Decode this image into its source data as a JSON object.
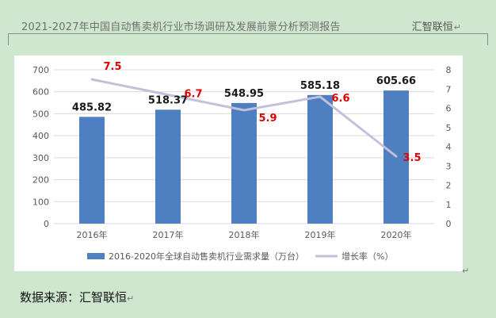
{
  "header": {
    "title": "2021-2027年中国自动售卖机行业市场调研及发展前景分析预测报告",
    "brand": "汇智联恒",
    "mark": "↵"
  },
  "source": {
    "text": "数据来源：汇智联恒",
    "mark": "↵"
  },
  "colors": {
    "bar": "#4e7fc0",
    "line": "#c5c0d9",
    "bar_label": "#1a1a1a",
    "rate_label": "#e00000",
    "axis_text": "#595959",
    "grid": "#d9d9d9"
  },
  "chart_data": {
    "type": "bar",
    "categories": [
      "2016年",
      "2017年",
      "2018年",
      "2019年",
      "2020年"
    ],
    "series": [
      {
        "name": "2016-2020年全球自动售卖机行业需求量（万台）",
        "type": "bar",
        "axis": "left",
        "values": [
          485.82,
          518.37,
          548.95,
          585.18,
          605.66
        ],
        "labels": [
          "485.82",
          "518.37",
          "548.95",
          "585.18",
          "605.66"
        ]
      },
      {
        "name": "增长率（%）",
        "type": "line",
        "axis": "right",
        "values": [
          7.5,
          6.7,
          5.9,
          6.6,
          3.5
        ],
        "labels": [
          "7.5",
          "6.7",
          "5.9",
          "6.6",
          "3.5"
        ]
      }
    ],
    "y_left": {
      "min": 0,
      "max": 700,
      "ticks": [
        "0",
        "100",
        "200",
        "300",
        "400",
        "500",
        "600",
        "700"
      ]
    },
    "y_right": {
      "min": 0,
      "max": 8,
      "ticks": [
        "0",
        "1",
        "2",
        "3",
        "4",
        "5",
        "6",
        "7",
        "8"
      ]
    },
    "grid": true,
    "legend_position": "bottom"
  }
}
